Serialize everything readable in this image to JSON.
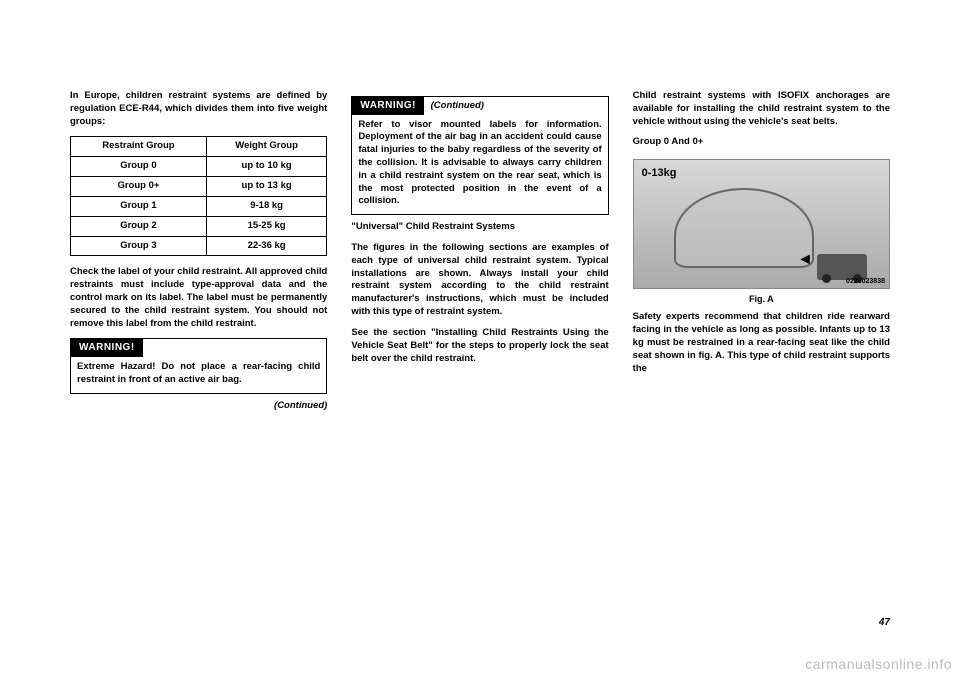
{
  "col1": {
    "intro": "In Europe, children restraint systems are defined by regulation ECE-R44, which divides them into five weight groups:",
    "table": {
      "headers": [
        "Restraint Group",
        "Weight Group"
      ],
      "rows": [
        [
          "Group 0",
          "up to 10 kg"
        ],
        [
          "Group 0+",
          "up to 13 kg"
        ],
        [
          "Group 1",
          "9-18 kg"
        ],
        [
          "Group 2",
          "15-25 kg"
        ],
        [
          "Group 3",
          "22-36 kg"
        ]
      ]
    },
    "after_table": "Check the label of your child restraint. All approved child restraints must include type-approval data and the control mark on its label. The label must be permanently secured to the child restraint system. You should not remove this label from the child restraint.",
    "warn_head": "WARNING!",
    "warn_body": "Extreme Hazard! Do not place a rear-facing child restraint in front of an active air bag.",
    "continued": "(Continued)"
  },
  "col2": {
    "warn_head": "WARNING!",
    "warn_cont": "(Continued)",
    "warn_body": "Refer to visor mounted labels for information. Deployment of the air bag in an accident could cause fatal injuries to the baby regardless of the severity of the collision. It is advisable to always carry children in a child restraint system on the rear seat, which is the most protected position in the event of a collision.",
    "sub1": "\"Universal\" Child Restraint Systems",
    "p1": "The figures in the following sections are examples of each type of universal child restraint system. Typical installations are shown. Always install your child restraint system according to the child restraint manufacturer's instructions, which must be included with this type of restraint system.",
    "p2": "See the section \"Installing Child Restraints Using the Vehicle Seat Belt\" for the steps to properly lock the seat belt over the child restraint."
  },
  "col3": {
    "p1": "Child restraint systems with ISOFIX anchorages are available for installing the child restraint system to the vehicle without using the vehicle's seat belts.",
    "sub1": "Group 0 And 0+",
    "fig": {
      "label": "0-13kg",
      "num": "0226023838",
      "caption": "Fig. A"
    },
    "p2": "Safety experts recommend that children ride rearward facing in the vehicle as long as possible. Infants up to 13 kg must be restrained in a rear-facing seat like the child seat shown in fig. A. This type of child restraint supports the"
  },
  "page_number": "47",
  "watermark": "carmanualsonline.info"
}
